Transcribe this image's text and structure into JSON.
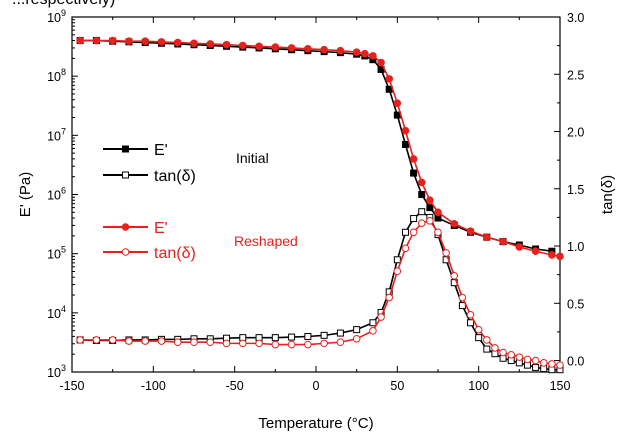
{
  "clipped_text": "...respectively)",
  "chart_data": {
    "type": "line",
    "xlabel": "Temperature (°C)",
    "ylabel_left": "E' (Pa)",
    "ylabel_right": "tan(δ)",
    "xlim": [
      -150,
      150
    ],
    "ylim_left": [
      1000,
      1000000000
    ],
    "ylim_right": [
      -0.1,
      3.0
    ],
    "y_left_scale": "log",
    "x_ticks": [
      -150,
      -100,
      -50,
      0,
      50,
      100,
      150
    ],
    "y_left_exponents": [
      3,
      4,
      5,
      6,
      7,
      8,
      9
    ],
    "y_right_ticks": [
      "0.0",
      "0.5",
      "1.0",
      "1.5",
      "2.0",
      "2.5",
      "3.0"
    ],
    "grid": false,
    "legend_placement": "left-middle",
    "legend": [
      {
        "label": "E'",
        "series": "initial_E",
        "color": "#000000",
        "marker": "square-filled"
      },
      {
        "label": "tan(δ)",
        "series": "initial_tan",
        "color": "#000000",
        "marker": "square-open"
      },
      {
        "label": "E'",
        "series": "reshaped_E",
        "color": "#e8211d",
        "marker": "circle-filled"
      },
      {
        "label": "tan(δ)",
        "series": "reshaped_tan",
        "color": "#e8211d",
        "marker": "circle-open"
      }
    ],
    "annotations": [
      {
        "text": "Initial",
        "color": "#000000"
      },
      {
        "text": "Reshaped",
        "color": "#e8211d"
      }
    ],
    "series": [
      {
        "id": "initial_E",
        "axis": "left",
        "color": "#000000",
        "marker": "square-filled",
        "x": [
          -145,
          -135,
          -125,
          -115,
          -105,
          -95,
          -85,
          -75,
          -65,
          -55,
          -45,
          -35,
          -25,
          -15,
          -5,
          5,
          15,
          25,
          30,
          35,
          40,
          45,
          50,
          55,
          60,
          65,
          70,
          75,
          85,
          95,
          105,
          115,
          125,
          135,
          145
        ],
        "y": [
          400000000.0,
          400000000.0,
          390000000.0,
          380000000.0,
          370000000.0,
          360000000.0,
          350000000.0,
          340000000.0,
          330000000.0,
          320000000.0,
          310000000.0,
          300000000.0,
          290000000.0,
          280000000.0,
          270000000.0,
          260000000.0,
          250000000.0,
          235000000.0,
          220000000.0,
          190000000.0,
          130000000.0,
          60000000.0,
          22000000.0,
          7000000.0,
          2300000.0,
          1000000.0,
          600000.0,
          400000.0,
          300000.0,
          230000.0,
          190000.0,
          160000.0,
          140000.0,
          120000.0,
          110000.0
        ]
      },
      {
        "id": "reshaped_E",
        "axis": "left",
        "color": "#e8211d",
        "marker": "circle-filled",
        "x": [
          -145,
          -135,
          -125,
          -115,
          -105,
          -95,
          -85,
          -75,
          -65,
          -55,
          -45,
          -35,
          -25,
          -15,
          -5,
          5,
          15,
          25,
          30,
          35,
          40,
          45,
          50,
          55,
          60,
          65,
          70,
          75,
          85,
          95,
          105,
          115,
          125,
          135,
          145,
          150
        ],
        "y": [
          400000000.0,
          400000000.0,
          400000000.0,
          390000000.0,
          390000000.0,
          380000000.0,
          370000000.0,
          360000000.0,
          350000000.0,
          340000000.0,
          330000000.0,
          320000000.0,
          310000000.0,
          300000000.0,
          290000000.0,
          280000000.0,
          270000000.0,
          255000000.0,
          240000000.0,
          220000000.0,
          170000000.0,
          90000000.0,
          35000000.0,
          12000000.0,
          4000000.0,
          1600000.0,
          800000.0,
          500000.0,
          320000.0,
          240000.0,
          190000.0,
          160000.0,
          130000.0,
          110000.0,
          95000.0,
          90000.0
        ]
      },
      {
        "id": "initial_tan",
        "axis": "right",
        "color": "#000000",
        "marker": "square-open",
        "x": [
          -145,
          -135,
          -125,
          -115,
          -105,
          -95,
          -85,
          -75,
          -65,
          -55,
          -45,
          -35,
          -25,
          -15,
          -5,
          5,
          15,
          25,
          35,
          40,
          45,
          50,
          55,
          60,
          65,
          70,
          75,
          80,
          85,
          90,
          95,
          100,
          105,
          110,
          115,
          120,
          125,
          130,
          135,
          140,
          145,
          150
        ],
        "y": [
          0.18,
          0.175,
          0.175,
          0.18,
          0.18,
          0.185,
          0.185,
          0.19,
          0.19,
          0.195,
          0.2,
          0.2,
          0.2,
          0.205,
          0.21,
          0.22,
          0.24,
          0.27,
          0.33,
          0.42,
          0.6,
          0.88,
          1.12,
          1.24,
          1.3,
          1.25,
          1.1,
          0.88,
          0.68,
          0.48,
          0.33,
          0.2,
          0.1,
          0.06,
          0.02,
          0.0,
          -0.02,
          -0.04,
          -0.06,
          -0.07,
          -0.08,
          -0.08
        ]
      },
      {
        "id": "reshaped_tan",
        "axis": "right",
        "color": "#e8211d",
        "marker": "circle-open",
        "x": [
          -145,
          -135,
          -125,
          -115,
          -105,
          -95,
          -85,
          -75,
          -65,
          -55,
          -45,
          -35,
          -25,
          -15,
          -5,
          5,
          15,
          25,
          35,
          40,
          45,
          50,
          55,
          60,
          65,
          70,
          75,
          80,
          85,
          90,
          95,
          100,
          105,
          110,
          115,
          120,
          125,
          130,
          135,
          140,
          145,
          150
        ],
        "y": [
          0.18,
          0.18,
          0.18,
          0.17,
          0.17,
          0.17,
          0.16,
          0.16,
          0.16,
          0.15,
          0.15,
          0.15,
          0.14,
          0.14,
          0.14,
          0.15,
          0.16,
          0.19,
          0.26,
          0.38,
          0.55,
          0.78,
          0.98,
          1.12,
          1.2,
          1.22,
          1.12,
          0.94,
          0.74,
          0.55,
          0.4,
          0.27,
          0.18,
          0.11,
          0.07,
          0.05,
          0.03,
          0.01,
          0.0,
          -0.02,
          -0.03,
          -0.04
        ]
      }
    ]
  }
}
